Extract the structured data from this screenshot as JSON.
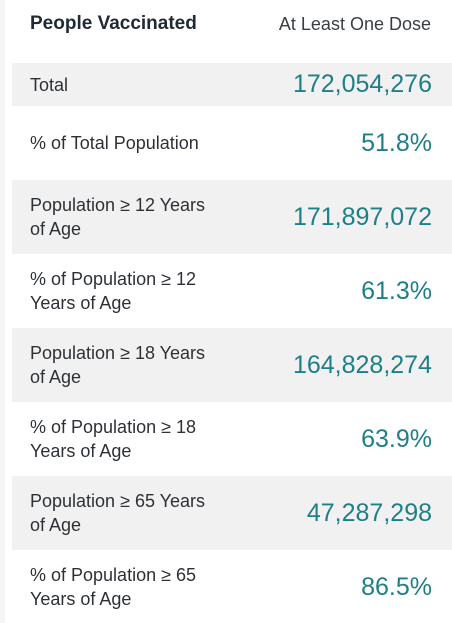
{
  "table": {
    "header_left": "People Vaccinated",
    "header_right": "At Least One Dose",
    "rows": [
      {
        "label": "Total",
        "value": "172,054,276"
      },
      {
        "label": "% of Total Population",
        "value": "51.8%"
      },
      {
        "label": "Population ≥ 12 Years of Age",
        "value": "171,897,072"
      },
      {
        "label": "% of Population ≥ 12 Years of Age",
        "value": "61.3%"
      },
      {
        "label": "Population ≥ 18 Years of Age",
        "value": "164,828,274"
      },
      {
        "label": "% of Population ≥ 18 Years of Age",
        "value": "63.9%"
      },
      {
        "label": "Population ≥ 65 Years of Age",
        "value": "47,287,298"
      },
      {
        "label": "% of Population ≥ 65 Years of Age",
        "value": "86.5%"
      }
    ]
  },
  "colors": {
    "value_teal": "#1e7f87",
    "row_shade": "#f1f1f1"
  }
}
